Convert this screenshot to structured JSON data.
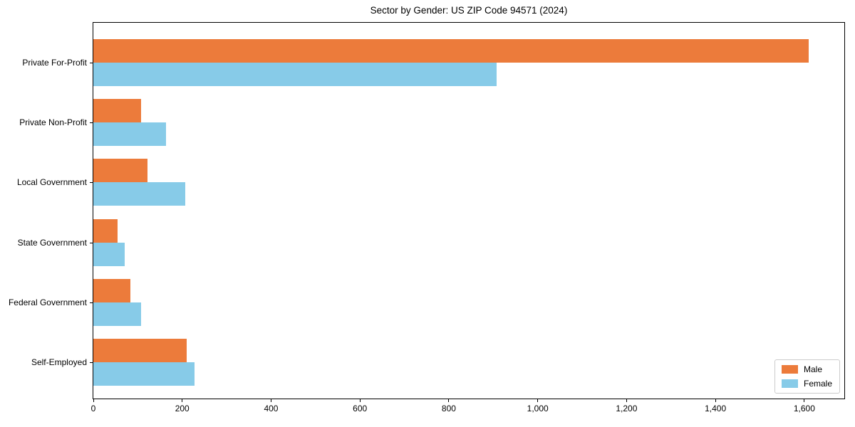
{
  "chart_data": {
    "type": "bar",
    "orientation": "horizontal",
    "title": "Sector by Gender: US ZIP Code 94571 (2024)",
    "categories": [
      "Private For-Profit",
      "Private Non-Profit",
      "Local Government",
      "State Government",
      "Federal Government",
      "Self-Employed"
    ],
    "series": [
      {
        "name": "Male",
        "color": "#EC7B3B",
        "values": [
          1610,
          108,
          122,
          55,
          84,
          210
        ]
      },
      {
        "name": "Female",
        "color": "#87CBE8",
        "values": [
          908,
          163,
          207,
          71,
          107,
          228
        ]
      }
    ],
    "xlabel": "",
    "ylabel": "",
    "xlim": [
      0,
      1690
    ],
    "xticks": [
      0,
      200,
      400,
      600,
      800,
      1000,
      1200,
      1400,
      1600
    ],
    "grid": false,
    "legend_position": "lower right",
    "axis_color": "#000000",
    "background_color": "#ffffff"
  }
}
